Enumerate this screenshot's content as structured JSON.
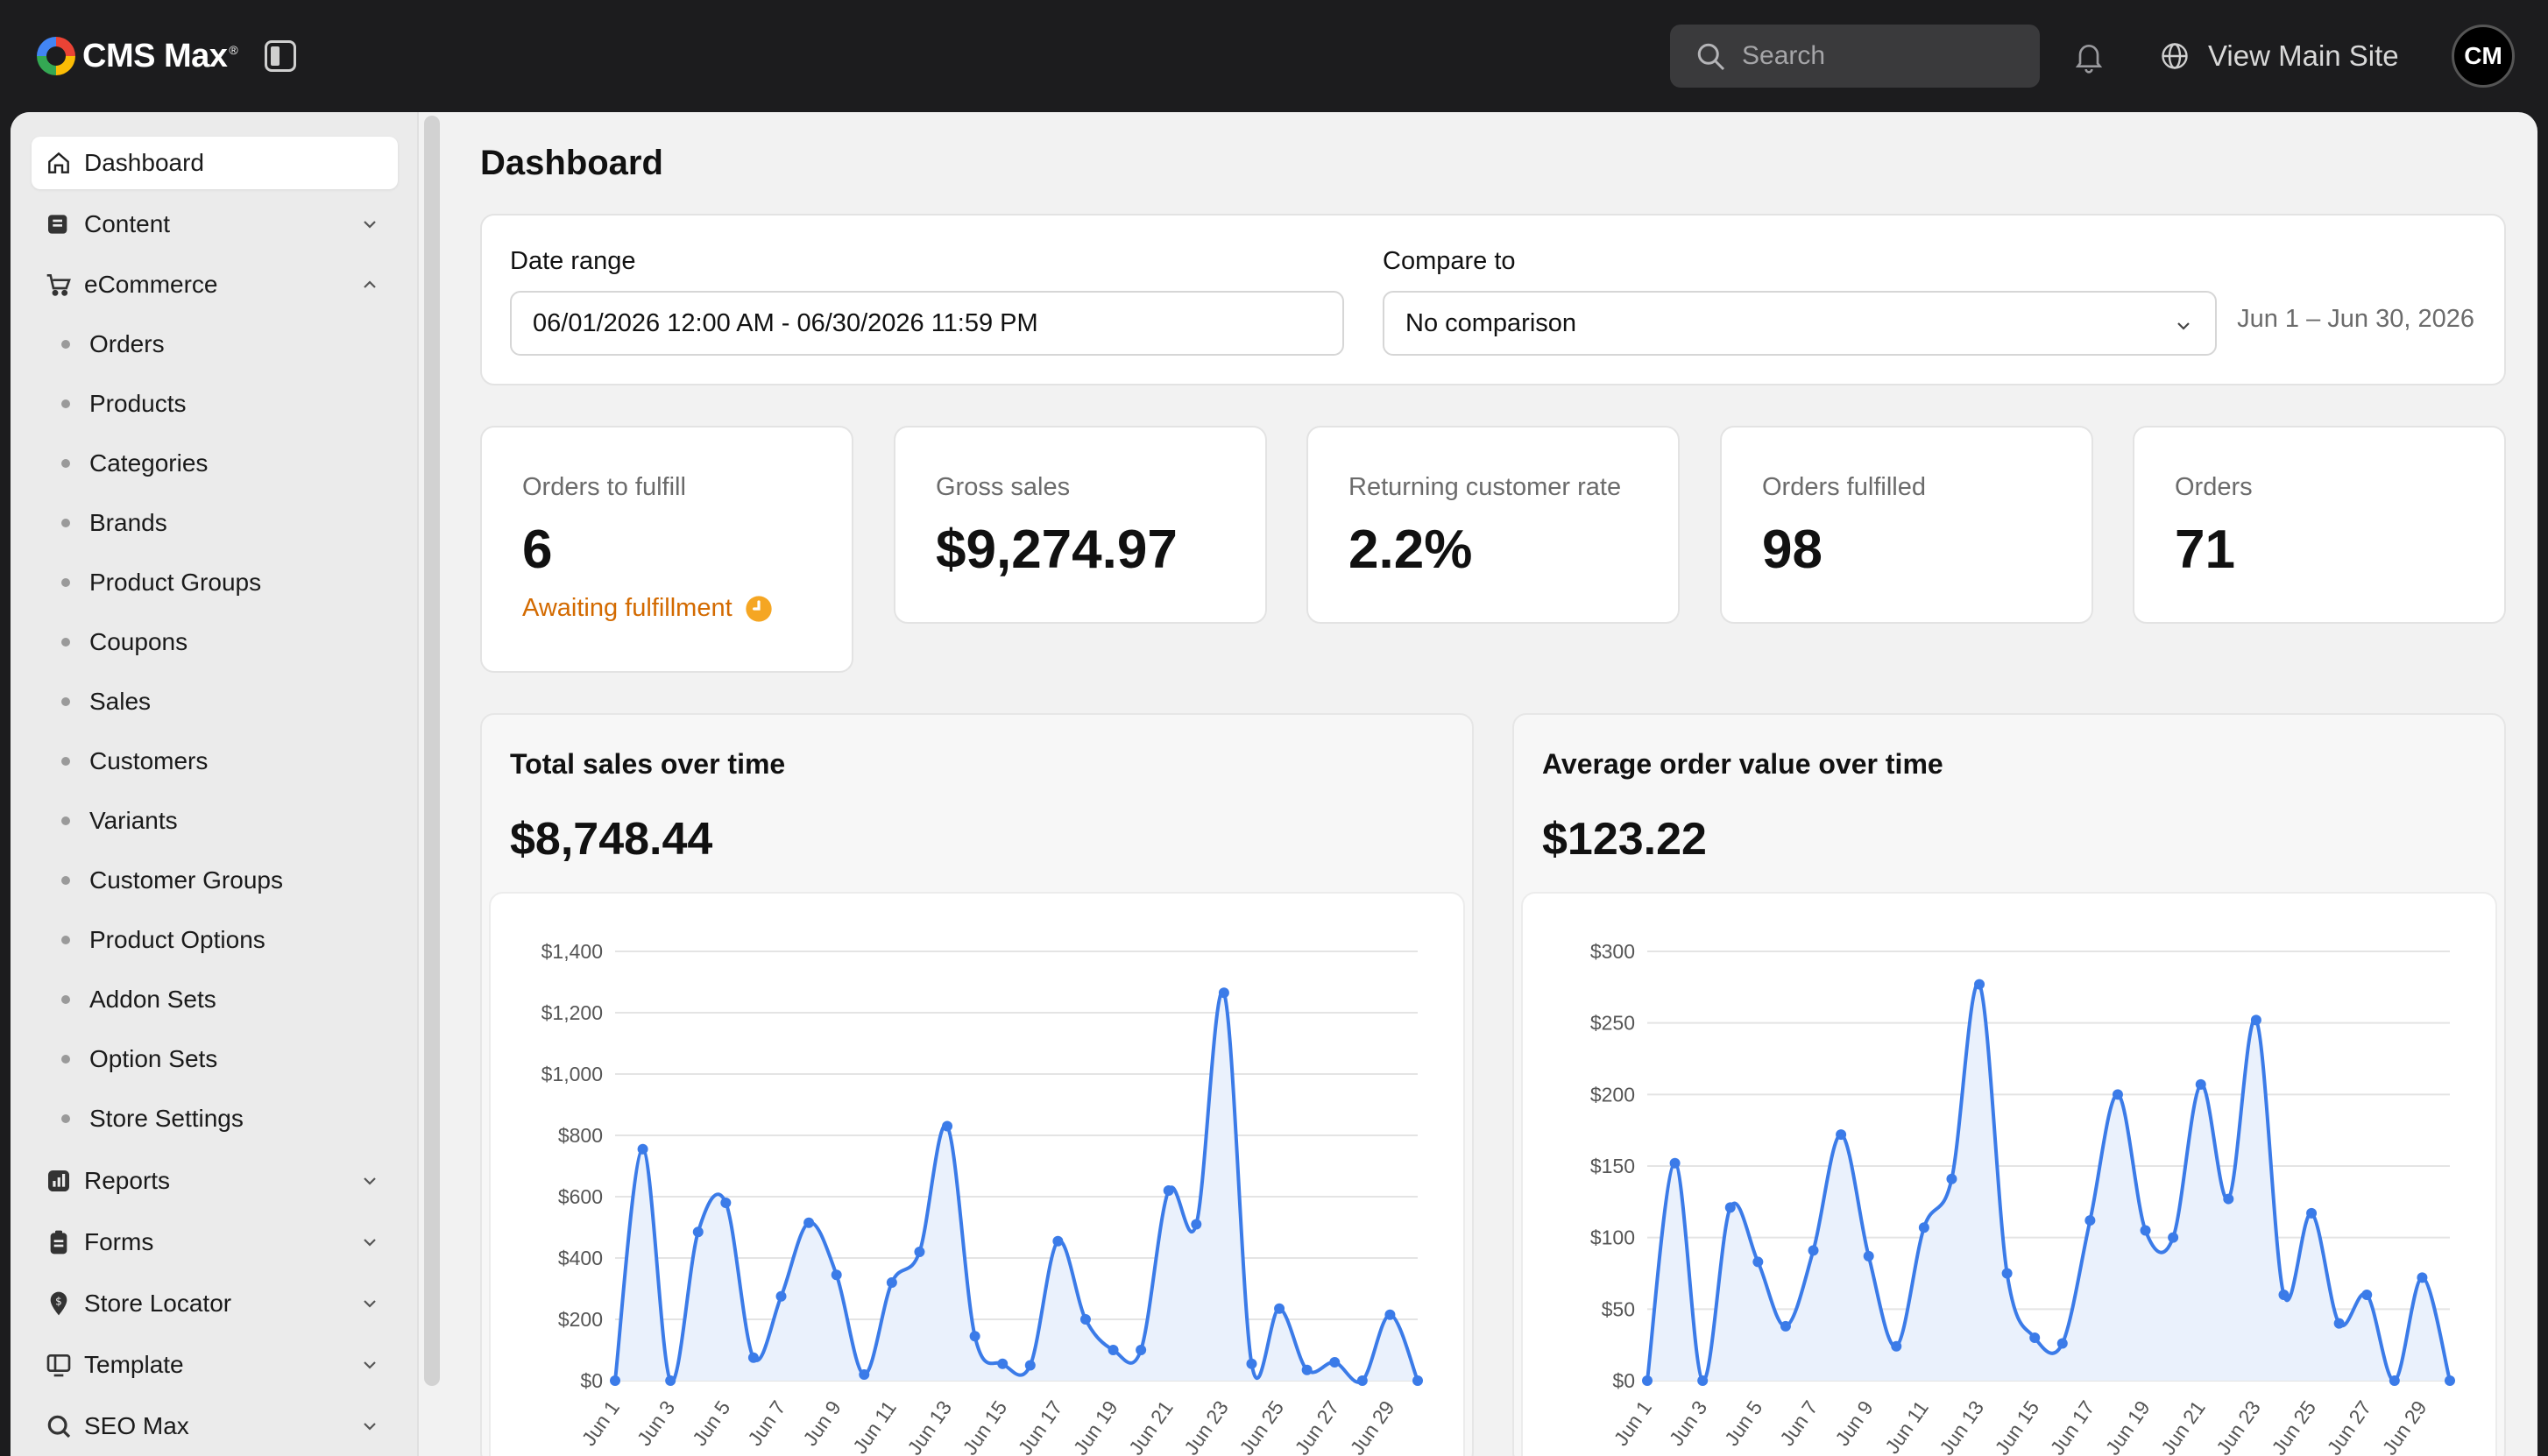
{
  "header": {
    "brand": "CMS Max",
    "brand_mark": "®",
    "search_placeholder": "Search",
    "view_site_label": "View Main Site",
    "avatar_initials": "CM"
  },
  "sidebar": {
    "items": [
      {
        "label": "Dashboard",
        "icon": "home-icon",
        "active": true
      },
      {
        "label": "Content",
        "icon": "content-icon",
        "expanded": false
      },
      {
        "label": "eCommerce",
        "icon": "cart-icon",
        "expanded": true
      },
      {
        "label": "Reports",
        "icon": "reports-icon",
        "expanded": false
      },
      {
        "label": "Forms",
        "icon": "clipboard-icon",
        "expanded": false
      },
      {
        "label": "Store Locator",
        "icon": "location-icon",
        "expanded": false
      },
      {
        "label": "Template",
        "icon": "template-icon",
        "expanded": false
      },
      {
        "label": "SEO Max",
        "icon": "seo-icon",
        "expanded": false
      }
    ],
    "ecommerce_sub": [
      "Orders",
      "Products",
      "Categories",
      "Brands",
      "Product Groups",
      "Coupons",
      "Sales",
      "Customers",
      "Variants",
      "Customer Groups",
      "Product Options",
      "Addon Sets",
      "Option Sets",
      "Store Settings"
    ]
  },
  "page": {
    "title": "Dashboard",
    "filters": {
      "date_range_label": "Date range",
      "date_range_value": "06/01/2026 12:00 AM - 06/30/2026 11:59 PM",
      "compare_label": "Compare to",
      "compare_value": "No comparison",
      "range_summary": "Jun 1 – Jun 30, 2026"
    },
    "stats": [
      {
        "label": "Orders to fulfill",
        "value": "6",
        "note": "Awaiting fulfillment"
      },
      {
        "label": "Gross sales",
        "value": "$9,274.97"
      },
      {
        "label": "Returning customer rate",
        "value": "2.2%"
      },
      {
        "label": "Orders fulfilled",
        "value": "98"
      },
      {
        "label": "Orders",
        "value": "71"
      }
    ]
  },
  "colors": {
    "accent": "#3b7be8",
    "accent_fill": "#eaf1fc",
    "warning": "#d36a00",
    "clock": "#f5a623"
  },
  "chart_data": [
    {
      "type": "area",
      "title": "Total sales over time",
      "headline": "$8,748.44",
      "ylim": [
        0,
        1400
      ],
      "yticks": [
        0,
        200,
        400,
        600,
        800,
        1000,
        1200,
        1400
      ],
      "ytick_labels": [
        "$0",
        "$200",
        "$400",
        "$600",
        "$800",
        "$1,000",
        "$1,200",
        "$1,400"
      ],
      "xtick_labels": [
        "Jun 1",
        "Jun 3",
        "Jun 5",
        "Jun 7",
        "Jun 9",
        "Jun 11",
        "Jun 13",
        "Jun 15",
        "Jun 17",
        "Jun 19",
        "Jun 21",
        "Jun 23",
        "Jun 25",
        "Jun 27",
        "Jun 29"
      ],
      "x": [
        "Jun 1",
        "Jun 2",
        "Jun 3",
        "Jun 4",
        "Jun 5",
        "Jun 6",
        "Jun 7",
        "Jun 8",
        "Jun 9",
        "Jun 10",
        "Jun 11",
        "Jun 12",
        "Jun 13",
        "Jun 14",
        "Jun 15",
        "Jun 16",
        "Jun 17",
        "Jun 18",
        "Jun 19",
        "Jun 20",
        "Jun 21",
        "Jun 22",
        "Jun 23",
        "Jun 24",
        "Jun 25",
        "Jun 26",
        "Jun 27",
        "Jun 28",
        "Jun 29",
        "Jun 30"
      ],
      "values": [
        0,
        755,
        0,
        485,
        580,
        75,
        275,
        515,
        345,
        20,
        320,
        420,
        830,
        145,
        55,
        50,
        455,
        200,
        100,
        100,
        620,
        510,
        1265,
        55,
        235,
        35,
        60,
        0,
        215,
        0
      ],
      "grid": true
    },
    {
      "type": "area",
      "title": "Average order value over time",
      "headline": "$123.22",
      "ylim": [
        0,
        300
      ],
      "yticks": [
        0,
        50,
        100,
        150,
        200,
        250,
        300
      ],
      "ytick_labels": [
        "$0",
        "$50",
        "$100",
        "$150",
        "$200",
        "$250",
        "$300"
      ],
      "xtick_labels": [
        "Jun 1",
        "Jun 3",
        "Jun 5",
        "Jun 7",
        "Jun 9",
        "Jun 11",
        "Jun 13",
        "Jun 15",
        "Jun 17",
        "Jun 19",
        "Jun 21",
        "Jun 23",
        "Jun 25",
        "Jun 27",
        "Jun 29"
      ],
      "x": [
        "Jun 1",
        "Jun 2",
        "Jun 3",
        "Jun 4",
        "Jun 5",
        "Jun 6",
        "Jun 7",
        "Jun 8",
        "Jun 9",
        "Jun 10",
        "Jun 11",
        "Jun 12",
        "Jun 13",
        "Jun 14",
        "Jun 15",
        "Jun 16",
        "Jun 17",
        "Jun 18",
        "Jun 19",
        "Jun 20",
        "Jun 21",
        "Jun 22",
        "Jun 23",
        "Jun 24",
        "Jun 25",
        "Jun 26",
        "Jun 27",
        "Jun 28",
        "Jun 29",
        "Jun 30"
      ],
      "values": [
        0,
        152,
        0,
        121,
        83,
        38,
        91,
        172,
        87,
        24,
        107,
        141,
        277,
        75,
        30,
        26,
        112,
        200,
        105,
        100,
        207,
        127,
        252,
        60,
        117,
        40,
        60,
        0,
        72,
        0
      ],
      "grid": true
    }
  ]
}
